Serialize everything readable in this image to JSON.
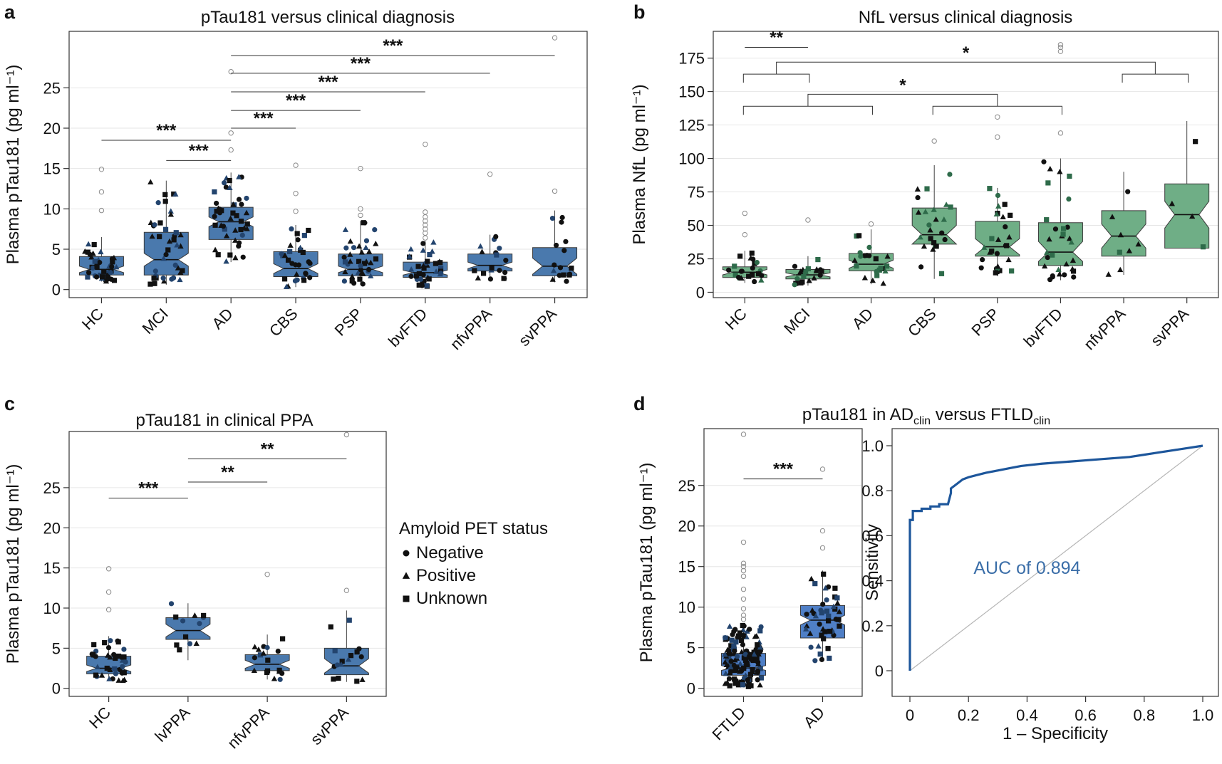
{
  "colors": {
    "blue": "#4a79ad",
    "blue_d": "#4f7fc6",
    "green": "#6fae86",
    "roc": "#1d569b",
    "outlier": "#8a8a8a"
  },
  "chart_data": [
    {
      "id": "a",
      "type": "boxplot",
      "panel_label": "a",
      "title": "pTau181 versus clinical diagnosis",
      "ylabel": "Plasma pTau181 (pg ml⁻¹)",
      "ylim": [
        -1,
        32
      ],
      "yticks": [
        0,
        5,
        10,
        15,
        20,
        25
      ],
      "categories": [
        "HC",
        "MCI",
        "AD",
        "CBS",
        "PSP",
        "bvFTD",
        "nfvPPA",
        "svPPA"
      ],
      "boxes": [
        {
          "q1": 1.8,
          "median": 2.5,
          "q3": 4.1,
          "notch_lo": 2.1,
          "notch_hi": 2.9,
          "wlo": 1.0,
          "whi": 6.5,
          "outliers": [
            9.8,
            12.1,
            14.9
          ]
        },
        {
          "q1": 1.8,
          "median": 3.7,
          "q3": 7.1,
          "notch_lo": 2.9,
          "notch_hi": 4.5,
          "wlo": 0.6,
          "whi": 13.5,
          "outliers": []
        },
        {
          "q1": 6.2,
          "median": 8.4,
          "q3": 10.2,
          "notch_lo": 7.8,
          "notch_hi": 9.0,
          "wlo": 3.4,
          "whi": 14.5,
          "outliers": [
            17.3,
            19.4,
            27.0
          ]
        },
        {
          "q1": 1.6,
          "median": 2.6,
          "q3": 4.7,
          "notch_lo": 2.0,
          "notch_hi": 3.2,
          "wlo": 0.3,
          "whi": 8.0,
          "outliers": [
            9.7,
            11.9,
            15.4
          ]
        },
        {
          "q1": 1.7,
          "median": 2.5,
          "q3": 4.4,
          "notch_lo": 2.1,
          "notch_hi": 2.9,
          "wlo": 0.6,
          "whi": 8.5,
          "outliers": [
            9.2,
            10.0,
            15.0
          ]
        },
        {
          "q1": 1.5,
          "median": 2.1,
          "q3": 3.4,
          "notch_lo": 1.8,
          "notch_hi": 2.4,
          "wlo": 0.4,
          "whi": 6.0,
          "outliers": [
            6.4,
            7.0,
            7.5,
            8.0,
            8.5,
            9.0,
            9.6,
            18.0
          ]
        },
        {
          "q1": 2.3,
          "median": 3.0,
          "q3": 4.4,
          "notch_lo": 2.6,
          "notch_hi": 3.4,
          "wlo": 1.3,
          "whi": 6.8,
          "outliers": [
            14.3
          ]
        },
        {
          "q1": 1.7,
          "median": 2.9,
          "q3": 5.2,
          "notch_lo": 1.9,
          "notch_hi": 3.9,
          "wlo": 0.9,
          "whi": 9.8,
          "outliers": [
            12.2,
            31.2
          ]
        }
      ],
      "points_n": [
        40,
        40,
        45,
        30,
        38,
        38,
        18,
        16
      ],
      "significance": [
        {
          "from": 0,
          "to": 2,
          "y": 18.5,
          "label": "***"
        },
        {
          "from": 1,
          "to": 2,
          "y": 16.0,
          "label": "***"
        },
        {
          "from": 2,
          "to": 3,
          "y": 20.0,
          "label": "***"
        },
        {
          "from": 2,
          "to": 4,
          "y": 22.2,
          "label": "***"
        },
        {
          "from": 2,
          "to": 5,
          "y": 24.5,
          "label": "***"
        },
        {
          "from": 2,
          "to": 6,
          "y": 26.8,
          "label": "***"
        },
        {
          "from": 2,
          "to": 7,
          "y": 29.0,
          "label": "***"
        }
      ]
    },
    {
      "id": "b",
      "type": "boxplot",
      "panel_label": "b",
      "title": "NfL versus clinical diagnosis",
      "ylabel": "Plasma NfL (pg ml⁻¹)",
      "ylim": [
        -4,
        195
      ],
      "yticks": [
        0,
        25,
        50,
        75,
        100,
        125,
        150,
        175
      ],
      "categories": [
        "HC",
        "MCI",
        "AD",
        "CBS",
        "PSP",
        "bvFTD",
        "nfvPPA",
        "svPPA"
      ],
      "boxes": [
        {
          "q1": 11,
          "median": 15,
          "q3": 19,
          "notch_lo": 13,
          "notch_hi": 17,
          "wlo": 7,
          "whi": 31,
          "outliers": [
            43,
            59
          ]
        },
        {
          "q1": 10,
          "median": 13,
          "q3": 17,
          "notch_lo": 11.5,
          "notch_hi": 14.5,
          "wlo": 5,
          "whi": 27,
          "outliers": [
            54
          ]
        },
        {
          "q1": 16,
          "median": 21,
          "q3": 29,
          "notch_lo": 18,
          "notch_hi": 24,
          "wlo": 6,
          "whi": 47,
          "outliers": [
            51
          ]
        },
        {
          "q1": 36,
          "median": 43,
          "q3": 63,
          "notch_lo": 36,
          "notch_hi": 50,
          "wlo": 10,
          "whi": 95,
          "outliers": [
            113
          ]
        },
        {
          "q1": 27,
          "median": 34,
          "q3": 53,
          "notch_lo": 28,
          "notch_hi": 40,
          "wlo": 12,
          "whi": 78,
          "outliers": [
            116,
            131
          ]
        },
        {
          "q1": 20,
          "median": 30,
          "q3": 52,
          "notch_lo": 23,
          "notch_hi": 38,
          "wlo": 9,
          "whi": 100,
          "outliers": [
            119,
            180,
            183,
            185
          ]
        },
        {
          "q1": 27,
          "median": 42,
          "q3": 61,
          "notch_lo": 33,
          "notch_hi": 51,
          "wlo": 13,
          "whi": 90,
          "outliers": []
        },
        {
          "q1": 33,
          "median": 58,
          "q3": 81,
          "notch_lo": 48,
          "notch_hi": 68,
          "wlo": 37,
          "whi": 128,
          "outliers": []
        }
      ],
      "points_n": [
        22,
        22,
        22,
        24,
        28,
        30,
        8,
        4
      ],
      "brackets": [
        {
          "type": "pair",
          "from": 0,
          "to": 1,
          "y": 183,
          "label": "**"
        },
        {
          "type": "group",
          "groupA": [
            0,
            1
          ],
          "groupB": [
            6,
            7
          ],
          "yA": 163,
          "yB": 163,
          "ytop": 172,
          "label": "*"
        },
        {
          "type": "group",
          "groupA": [
            0,
            2
          ],
          "groupB": [
            3,
            5
          ],
          "yA": 139,
          "yB": 139,
          "ytop": 148,
          "label": "*"
        }
      ]
    },
    {
      "id": "c",
      "type": "boxplot",
      "panel_label": "c",
      "title": "pTau181 in clinical PPA",
      "ylabel": "Plasma pTau181 (pg ml⁻¹)",
      "ylim": [
        -1,
        32
      ],
      "yticks": [
        0,
        5,
        10,
        15,
        20,
        25
      ],
      "categories": [
        "HC",
        "lvPPA",
        "nfvPPA",
        "svPPA"
      ],
      "boxes": [
        {
          "q1": 1.8,
          "median": 2.5,
          "q3": 4.0,
          "notch_lo": 2.1,
          "notch_hi": 2.9,
          "wlo": 0.9,
          "whi": 6.5,
          "outliers": [
            9.8,
            12.0,
            14.9
          ]
        },
        {
          "q1": 6.1,
          "median": 7.2,
          "q3": 8.8,
          "notch_lo": 6.4,
          "notch_hi": 8.0,
          "wlo": 3.5,
          "whi": 10.6,
          "outliers": []
        },
        {
          "q1": 2.2,
          "median": 3.0,
          "q3": 4.2,
          "notch_lo": 2.5,
          "notch_hi": 3.5,
          "wlo": 1.1,
          "whi": 6.7,
          "outliers": [
            14.2
          ]
        },
        {
          "q1": 1.7,
          "median": 2.8,
          "q3": 5.0,
          "notch_lo": 1.9,
          "notch_hi": 3.7,
          "wlo": 0.8,
          "whi": 9.7,
          "outliers": [
            12.2,
            31.6
          ]
        }
      ],
      "points_n": [
        40,
        12,
        18,
        16
      ],
      "significance": [
        {
          "from": 0,
          "to": 1,
          "y": 23.7,
          "label": "***"
        },
        {
          "from": 1,
          "to": 2,
          "y": 25.7,
          "label": "**"
        },
        {
          "from": 1,
          "to": 3,
          "y": 28.6,
          "label": "**"
        }
      ],
      "legend": {
        "title": "Amyloid PET status",
        "items": [
          {
            "shape": "circle",
            "label": "Negative"
          },
          {
            "shape": "triangle",
            "label": "Positive"
          },
          {
            "shape": "square",
            "label": "Unknown"
          }
        ]
      }
    },
    {
      "id": "d",
      "type": "boxplot",
      "panel_label": "d",
      "title": "pTau181 in AD",
      "title_sub": "clin",
      "title_mid": " versus FTLD",
      "title_sub2": "clin",
      "ylabel": "Plasma pTau181 (pg ml⁻¹)",
      "ylim": [
        -1,
        32
      ],
      "yticks": [
        0,
        5,
        10,
        15,
        20,
        25
      ],
      "categories": [
        "FTLD",
        "AD"
      ],
      "boxes": [
        {
          "q1": 1.6,
          "median": 2.5,
          "q3": 4.3,
          "notch_lo": 2.2,
          "notch_hi": 2.8,
          "wlo": 0.2,
          "whi": 8.0,
          "outliers": [
            8.5,
            9.0,
            9.8,
            11.0,
            12.2,
            13.8,
            14.5,
            15.0,
            15.4,
            18.0,
            31.3
          ]
        },
        {
          "q1": 6.2,
          "median": 8.4,
          "q3": 10.2,
          "notch_lo": 7.8,
          "notch_hi": 9.0,
          "wlo": 3.4,
          "whi": 14.5,
          "outliers": [
            17.3,
            19.4,
            27.0
          ]
        }
      ],
      "points_n": [
        140,
        45
      ],
      "significance": [
        {
          "from": 0,
          "to": 1,
          "y": 25.8,
          "label": "***"
        }
      ]
    },
    {
      "id": "roc",
      "type": "line",
      "xlabel": "1 – Specificity",
      "ylabel": "Sensitivity",
      "xlim": [
        0,
        1
      ],
      "ylim": [
        0,
        1
      ],
      "ticks": [
        "0",
        "0.2",
        "0.4",
        "0.6",
        "0.8",
        "1.0"
      ],
      "yticklabels": [
        "0",
        "0.2",
        "0.4",
        "0.6",
        "0.8",
        "1.0"
      ],
      "annotation": "AUC of 0.894",
      "x": [
        0,
        0,
        0.01,
        0.01,
        0.04,
        0.04,
        0.07,
        0.07,
        0.1,
        0.1,
        0.13,
        0.14,
        0.14,
        0.16,
        0.18,
        0.2,
        0.23,
        0.26,
        0.3,
        0.34,
        0.38,
        0.45,
        0.55,
        0.65,
        0.75,
        0.8,
        0.85,
        0.9,
        0.95,
        1.0
      ],
      "y": [
        0,
        0.67,
        0.67,
        0.71,
        0.71,
        0.72,
        0.72,
        0.73,
        0.73,
        0.74,
        0.74,
        0.79,
        0.81,
        0.83,
        0.85,
        0.86,
        0.87,
        0.88,
        0.89,
        0.9,
        0.91,
        0.92,
        0.93,
        0.94,
        0.95,
        0.96,
        0.97,
        0.98,
        0.99,
        1.0
      ]
    }
  ]
}
